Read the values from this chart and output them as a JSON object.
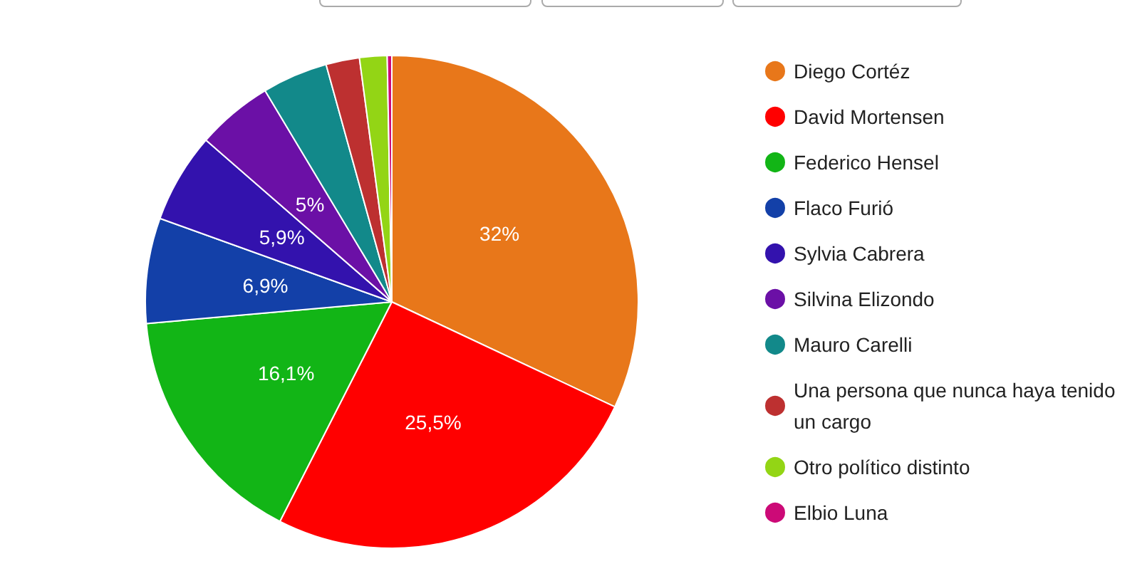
{
  "chart_data": {
    "type": "pie",
    "categories": [
      "Diego Cortéz",
      "David Mortensen",
      "Federico Hensel",
      "Flaco Furió",
      "Sylvia Cabrera",
      "Silvina Elizondo",
      "Mauro Carelli",
      "Una persona que nunca haya tenido un cargo",
      "Otro político distinto",
      "Elbio Luna"
    ],
    "values": [
      32,
      25.5,
      16.1,
      6.9,
      5.9,
      5,
      4.3,
      2.2,
      1.8,
      0.3
    ],
    "colors": [
      "#e8771a",
      "#ff0000",
      "#12b516",
      "#1340a8",
      "#3312ad",
      "#6b10a6",
      "#12898a",
      "#bd3030",
      "#93d515",
      "#cc0a77"
    ],
    "value_labels": [
      "32%",
      "25,5%",
      "16,1%",
      "6,9%",
      "5,9%",
      "5%",
      null,
      null,
      null,
      null
    ],
    "legend": "right"
  }
}
